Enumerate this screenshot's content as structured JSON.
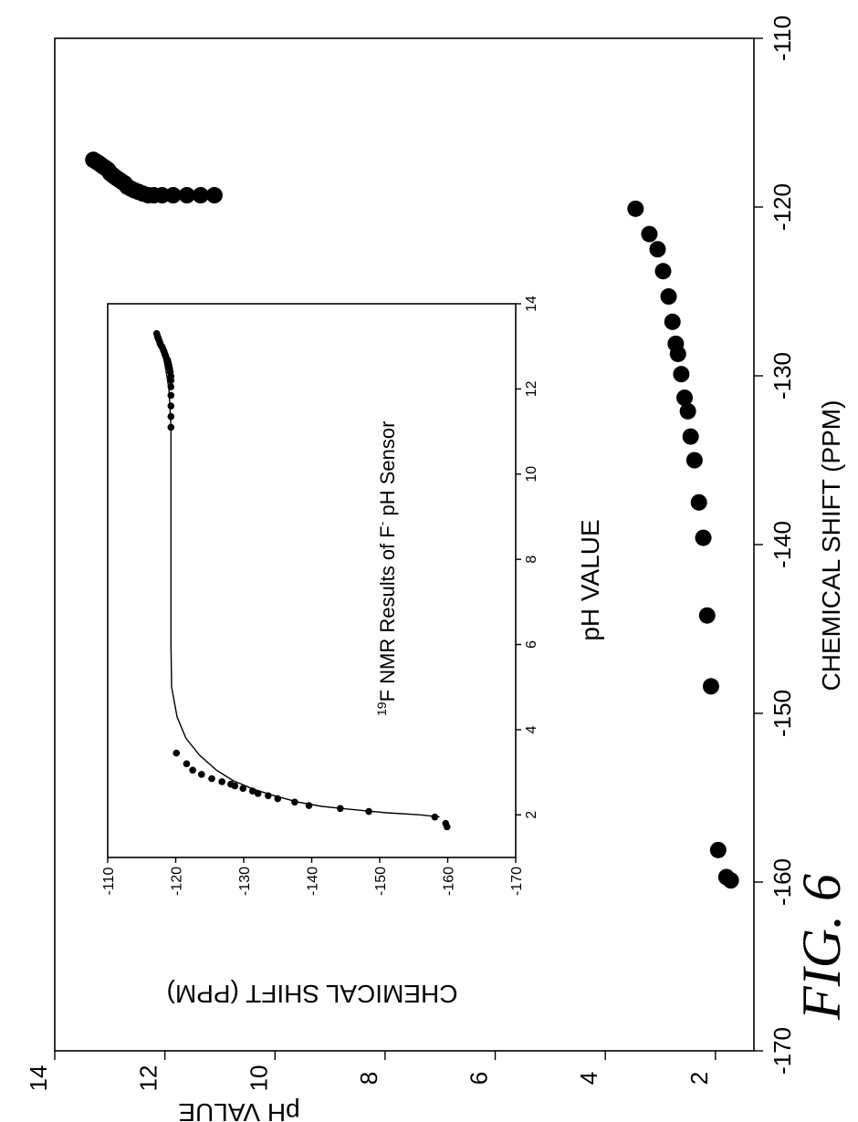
{
  "figure_label": "FIG. 6",
  "chart_data": [
    {
      "type": "scatter",
      "title_main": "F NMR Results of F",
      "title_sup_pre": "19",
      "title_sup_post": "-",
      "title_tail": " pH Sensor",
      "xlabel": "CHEMICAL SHIFT (PPM)",
      "ylabel": "pH VALUE",
      "xlim": [
        -170,
        -110
      ],
      "ylim": [
        1.3,
        14
      ],
      "xticks": [
        -170,
        -160,
        -150,
        -140,
        -130,
        -120,
        -110
      ],
      "yticks": [
        2,
        4,
        6,
        8,
        10,
        12,
        14
      ],
      "series": [
        {
          "x": [
            -119.3,
            -119.3,
            -119.3,
            -119.3,
            -119.3,
            -119.3,
            -119.3,
            -119.2,
            -119.1,
            -119.0,
            -118.9,
            -118.8,
            -118.6,
            -118.5,
            -118.4,
            -118.3,
            -118.2,
            -118.1,
            -118.0,
            -117.8,
            -117.7,
            -117.6,
            -117.5,
            -117.4,
            -117.3,
            -117.2
          ],
          "y": [
            11.1,
            11.35,
            11.6,
            11.85,
            12.05,
            12.2,
            12.3,
            12.4,
            12.48,
            12.56,
            12.62,
            12.68,
            12.73,
            12.78,
            12.82,
            12.87,
            12.91,
            12.95,
            12.99,
            13.03,
            13.07,
            13.12,
            13.16,
            13.2,
            13.25,
            13.3
          ]
        },
        {
          "x": [
            -159.9,
            -159.7,
            -158.1,
            -148.4,
            -144.2,
            -139.6,
            -137.5,
            -135.0,
            -133.6,
            -132.1,
            -131.3,
            -129.9,
            -128.7,
            -128.1,
            -126.8,
            -125.3,
            -123.8,
            -122.5,
            -121.6,
            -120.1
          ],
          "y": [
            1.72,
            1.8,
            1.95,
            2.08,
            2.15,
            2.22,
            2.3,
            2.38,
            2.45,
            2.5,
            2.56,
            2.62,
            2.68,
            2.72,
            2.78,
            2.85,
            2.95,
            3.05,
            3.2,
            3.45
          ]
        }
      ]
    },
    {
      "type": "scatter",
      "xlabel": "pH VALUE",
      "ylabel": "CHEMICAL SHIFT (PPM)",
      "xlim": [
        1,
        14
      ],
      "ylim": [
        -170,
        -110
      ],
      "xticks": [
        2,
        4,
        6,
        8,
        10,
        12,
        14
      ],
      "yticks": [
        -170,
        -160,
        -150,
        -140,
        -130,
        -120,
        -110
      ],
      "points": {
        "x": [
          1.72,
          1.8,
          1.95,
          2.08,
          2.15,
          2.22,
          2.3,
          2.38,
          2.45,
          2.5,
          2.56,
          2.62,
          2.68,
          2.72,
          2.78,
          2.85,
          2.95,
          3.05,
          3.2,
          3.45,
          11.1,
          11.35,
          11.6,
          11.85,
          12.05,
          12.2,
          12.3,
          12.4,
          12.48,
          12.56,
          12.62,
          12.68,
          12.73,
          12.78,
          12.82,
          12.87,
          12.91,
          12.95,
          12.99,
          13.03,
          13.07,
          13.12,
          13.16,
          13.2,
          13.25,
          13.3
        ],
        "y": [
          -159.9,
          -159.7,
          -158.1,
          -148.4,
          -144.2,
          -139.6,
          -137.5,
          -135.0,
          -133.6,
          -132.1,
          -131.3,
          -129.9,
          -128.7,
          -128.1,
          -126.8,
          -125.3,
          -123.8,
          -122.5,
          -121.6,
          -120.1,
          -119.3,
          -119.3,
          -119.3,
          -119.3,
          -119.3,
          -119.3,
          -119.3,
          -119.2,
          -119.1,
          -119.0,
          -118.9,
          -118.8,
          -118.6,
          -118.5,
          -118.4,
          -118.3,
          -118.2,
          -118.1,
          -118.0,
          -117.8,
          -117.7,
          -117.6,
          -117.5,
          -117.4,
          -117.3,
          -117.2
        ]
      },
      "fit_line": {
        "x": [
          1.95,
          2.0,
          2.05,
          2.1,
          2.15,
          2.2,
          2.3,
          2.45,
          2.6,
          2.8,
          3.05,
          3.4,
          3.8,
          4.3,
          5.0,
          6.0,
          8.0,
          10.0,
          11.1,
          12.0,
          12.5,
          13.0,
          13.3
        ],
        "y": [
          -158.8,
          -156.0,
          -151.0,
          -147.5,
          -144.5,
          -141.5,
          -138.0,
          -134.5,
          -131.5,
          -128.5,
          -126.0,
          -123.5,
          -121.5,
          -120.2,
          -119.4,
          -119.3,
          -119.3,
          -119.3,
          -119.3,
          -119.0,
          -118.5,
          -117.9,
          -117.2
        ]
      }
    }
  ]
}
